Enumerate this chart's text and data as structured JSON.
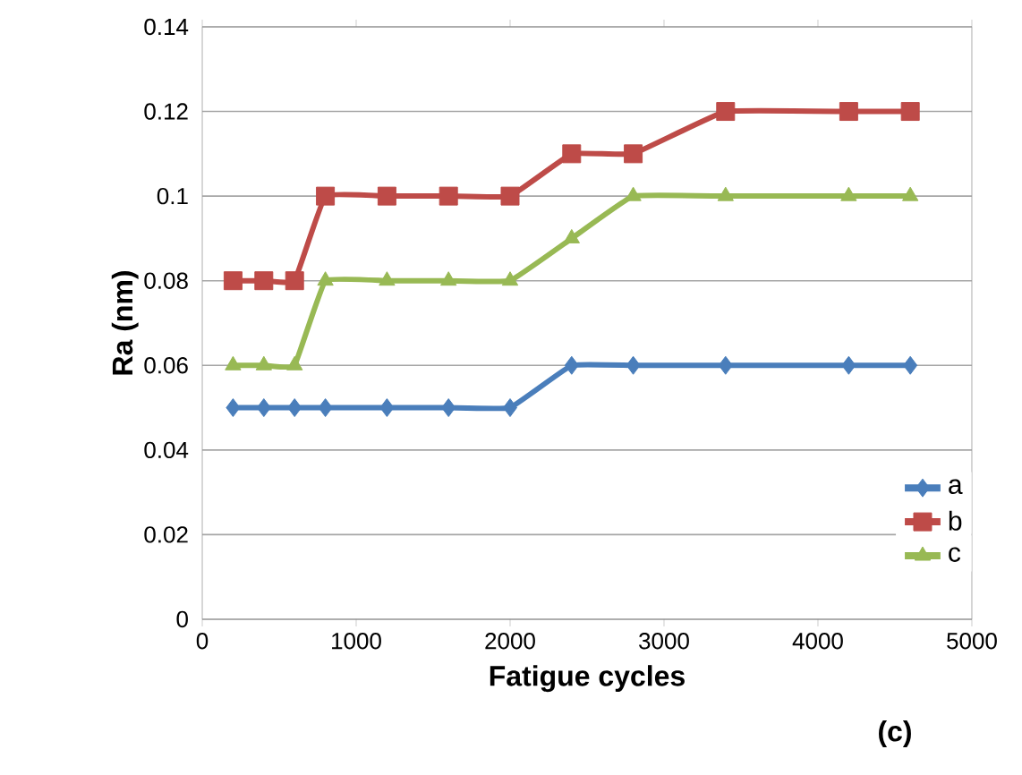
{
  "chart_data": {
    "type": "line",
    "xlabel": "Fatigue cycles",
    "ylabel": "Ra (nm)",
    "annotations": [
      "(c)"
    ],
    "x": [
      200,
      400,
      600,
      800,
      1200,
      1600,
      2000,
      2400,
      2800,
      3400,
      4200,
      4600
    ],
    "series": [
      {
        "name": "a",
        "color": "#4a7ebb",
        "marker": "diamond",
        "values": [
          0.05,
          0.05,
          0.05,
          0.05,
          0.05,
          0.05,
          0.05,
          0.06,
          0.06,
          0.06,
          0.06,
          0.06
        ]
      },
      {
        "name": "b",
        "color": "#be4b48",
        "marker": "square",
        "values": [
          0.08,
          0.08,
          0.08,
          0.1,
          0.1,
          0.1,
          0.1,
          0.11,
          0.11,
          0.12,
          0.12,
          0.12
        ]
      },
      {
        "name": "c",
        "color": "#98b954",
        "marker": "triangle",
        "values": [
          0.06,
          0.06,
          0.06,
          0.08,
          0.08,
          0.08,
          0.08,
          0.09,
          0.1,
          0.1,
          0.1,
          0.1
        ]
      }
    ],
    "xlim": [
      0,
      5000
    ],
    "xticks": [
      0,
      1000,
      2000,
      3000,
      4000,
      5000
    ],
    "ylim": [
      0,
      0.14
    ],
    "yticks": [
      0,
      0.02,
      0.04,
      0.06,
      0.08,
      0.1,
      0.12,
      0.14
    ],
    "grid": "y",
    "legend": "bottom right",
    "line_style": "solid"
  }
}
